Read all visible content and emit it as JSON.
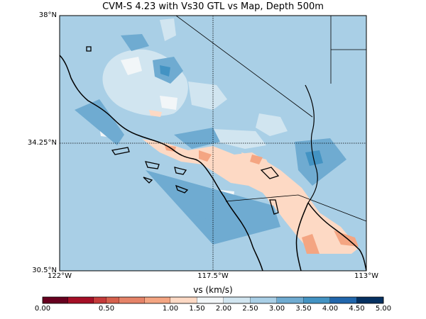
{
  "title": "CVM-S 4.23 with Vs30 GTL vs Map, Depth 500m",
  "map": {
    "lat_labels": [
      "38°N",
      "34.25°N",
      "30.5°N"
    ],
    "lon_labels": [
      "122°W",
      "117.5°W",
      "113°W"
    ],
    "lat_range": [
      30.5,
      38
    ],
    "lon_range": [
      -122,
      -113
    ],
    "grid_lines": true,
    "background_color": "#a9cfe6"
  },
  "colorbar": {
    "label": "vs (km/s)",
    "tick_labels": [
      "0.00",
      "0.50",
      "1.00",
      "1.50",
      "2.00",
      "2.50",
      "3.00",
      "3.50",
      "4.00",
      "4.50",
      "5.00"
    ],
    "boundaries": [
      0,
      0.2,
      0.4,
      0.5,
      0.6,
      0.8,
      1.0,
      1.5,
      2.0,
      2.5,
      3.0,
      3.5,
      4.0,
      4.5,
      5.0
    ],
    "colors": [
      "#67001f",
      "#a50f26",
      "#c53a3a",
      "#d6604d",
      "#e58368",
      "#f4a582",
      "#fdd9c4",
      "#f2f6f8",
      "#d1e5f0",
      "#a9cfe6",
      "#6fabd1",
      "#4393c3",
      "#2166ac",
      "#053061"
    ]
  }
}
